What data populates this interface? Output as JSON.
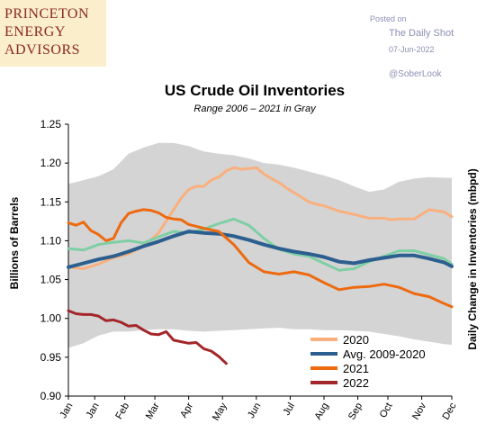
{
  "branding": {
    "logo_lines": [
      "PRINCETON",
      "ENERGY",
      "ADVISORS"
    ],
    "posted_on": "Posted on",
    "source": "The Daily Shot",
    "date": "07-Jun-2022",
    "handle": "@SoberLook"
  },
  "colors": {
    "band": "#d4d4d4",
    "y2020": "#f9b07e",
    "avg": "#2c5f8f",
    "y2021": "#ed6a10",
    "y2022": "#a3272a",
    "y2020_extra": "#7fcfa4"
  },
  "chart_data": {
    "type": "line",
    "title": "US Crude Oil Inventories",
    "subtitle": "Range 2006 – 2021 in Gray",
    "ylabel": "Billions of Barrels",
    "y2label": "Daily Change in Inventories (mbpd)",
    "ylim": [
      0.9,
      1.25
    ],
    "yticks": [
      0.9,
      0.95,
      1.0,
      1.05,
      1.1,
      1.15,
      1.2,
      1.25
    ],
    "ytick_labels": [
      "0.90",
      "0.95",
      "1.00",
      "1.05",
      "1.10",
      "1.15",
      "1.20",
      "1.25"
    ],
    "x_unit": "week of year",
    "xlim": [
      1,
      52
    ],
    "xtick_labels": [
      "Jan",
      "Jan",
      "Feb",
      "Mar",
      "Apr",
      "May",
      "Jun",
      "Jul",
      "Aug",
      "Sep",
      "Oct",
      "Nov",
      "Dec"
    ],
    "xtick_weeks": [
      1,
      4.5,
      8.5,
      12.5,
      17,
      21.5,
      26,
      30.5,
      35,
      39.5,
      43.5,
      48,
      52
    ],
    "grid": false,
    "legend_position": "bottom-center",
    "range_band": {
      "x": [
        1,
        3,
        5,
        7,
        9,
        11,
        13,
        15,
        17,
        19,
        21,
        23,
        25,
        27,
        29,
        31,
        33,
        35,
        37,
        39,
        41,
        43,
        45,
        47,
        49,
        51,
        52
      ],
      "upper": [
        1.173,
        1.178,
        1.183,
        1.192,
        1.212,
        1.22,
        1.226,
        1.226,
        1.222,
        1.215,
        1.212,
        1.21,
        1.206,
        1.2,
        1.198,
        1.194,
        1.189,
        1.184,
        1.178,
        1.17,
        1.163,
        1.166,
        1.176,
        1.18,
        1.182,
        1.181,
        1.181
      ],
      "lower": [
        0.962,
        0.968,
        0.978,
        0.983,
        0.983,
        0.985,
        0.986,
        0.986,
        0.984,
        0.983,
        0.984,
        0.985,
        0.986,
        0.987,
        0.988,
        0.986,
        0.986,
        0.985,
        0.985,
        0.984,
        0.983,
        0.98,
        0.977,
        0.973,
        0.97,
        0.967,
        0.966
      ]
    },
    "series": [
      {
        "name": "2020",
        "color_key": "y2020",
        "legend": true,
        "x": [
          1,
          3,
          5,
          7,
          9,
          11,
          13,
          15,
          16,
          17,
          18,
          19,
          20,
          21,
          22,
          23,
          24,
          25,
          26,
          27,
          28,
          29,
          30,
          31,
          32,
          33,
          34,
          35,
          37,
          39,
          41,
          43,
          44,
          45,
          47,
          49,
          51,
          52
        ],
        "y": [
          1.066,
          1.064,
          1.07,
          1.078,
          1.083,
          1.093,
          1.11,
          1.14,
          1.155,
          1.166,
          1.17,
          1.17,
          1.178,
          1.182,
          1.19,
          1.194,
          1.192,
          1.193,
          1.194,
          1.186,
          1.18,
          1.175,
          1.168,
          1.162,
          1.156,
          1.15,
          1.147,
          1.145,
          1.138,
          1.134,
          1.129,
          1.129,
          1.127,
          1.128,
          1.128,
          1.14,
          1.137,
          1.131
        ]
      },
      {
        "name": "",
        "color_key": "y2020_extra",
        "legend": false,
        "x": [
          1,
          3,
          5,
          7,
          9,
          11,
          13,
          15,
          17,
          19,
          21,
          23,
          25,
          27,
          29,
          31,
          33,
          35,
          37,
          39,
          41,
          43,
          45,
          47,
          49,
          51,
          52
        ],
        "y": [
          1.09,
          1.088,
          1.095,
          1.098,
          1.1,
          1.097,
          1.105,
          1.112,
          1.11,
          1.115,
          1.122,
          1.128,
          1.12,
          1.103,
          1.089,
          1.083,
          1.08,
          1.071,
          1.062,
          1.064,
          1.073,
          1.08,
          1.087,
          1.087,
          1.082,
          1.077,
          1.07
        ]
      },
      {
        "name": "Avg. 2009-2020",
        "color_key": "avg",
        "legend": true,
        "x": [
          1,
          3,
          5,
          7,
          9,
          11,
          13,
          15,
          17,
          19,
          21,
          23,
          25,
          27,
          29,
          31,
          33,
          35,
          37,
          39,
          41,
          43,
          45,
          47,
          49,
          51,
          52
        ],
        "y": [
          1.066,
          1.071,
          1.076,
          1.08,
          1.086,
          1.093,
          1.099,
          1.106,
          1.112,
          1.11,
          1.109,
          1.106,
          1.101,
          1.095,
          1.09,
          1.086,
          1.083,
          1.079,
          1.073,
          1.071,
          1.075,
          1.078,
          1.081,
          1.081,
          1.077,
          1.072,
          1.067
        ]
      },
      {
        "name": "2021",
        "color_key": "y2021",
        "legend": true,
        "x": [
          1,
          2,
          3,
          4,
          5,
          6,
          7,
          8,
          9,
          10,
          11,
          12,
          13,
          14,
          15,
          16,
          17,
          19,
          21,
          23,
          25,
          27,
          29,
          31,
          33,
          35,
          37,
          39,
          41,
          43,
          45,
          47,
          49,
          51,
          52
        ],
        "y": [
          1.123,
          1.12,
          1.124,
          1.113,
          1.108,
          1.1,
          1.103,
          1.123,
          1.135,
          1.138,
          1.14,
          1.139,
          1.136,
          1.13,
          1.128,
          1.127,
          1.121,
          1.116,
          1.112,
          1.095,
          1.072,
          1.06,
          1.057,
          1.06,
          1.056,
          1.046,
          1.037,
          1.04,
          1.041,
          1.044,
          1.04,
          1.032,
          1.028,
          1.019,
          1.015
        ]
      },
      {
        "name": "2022",
        "color_key": "y2022",
        "legend": true,
        "x": [
          1,
          2,
          3,
          4,
          5,
          6,
          7,
          8,
          9,
          10,
          11,
          12,
          13,
          14,
          15,
          16,
          17,
          18,
          19,
          20,
          21,
          22
        ],
        "y": [
          1.01,
          1.006,
          1.005,
          1.005,
          1.003,
          0.997,
          0.998,
          0.995,
          0.99,
          0.991,
          0.985,
          0.98,
          0.979,
          0.983,
          0.972,
          0.97,
          0.968,
          0.969,
          0.961,
          0.958,
          0.951,
          0.942
        ]
      }
    ]
  }
}
